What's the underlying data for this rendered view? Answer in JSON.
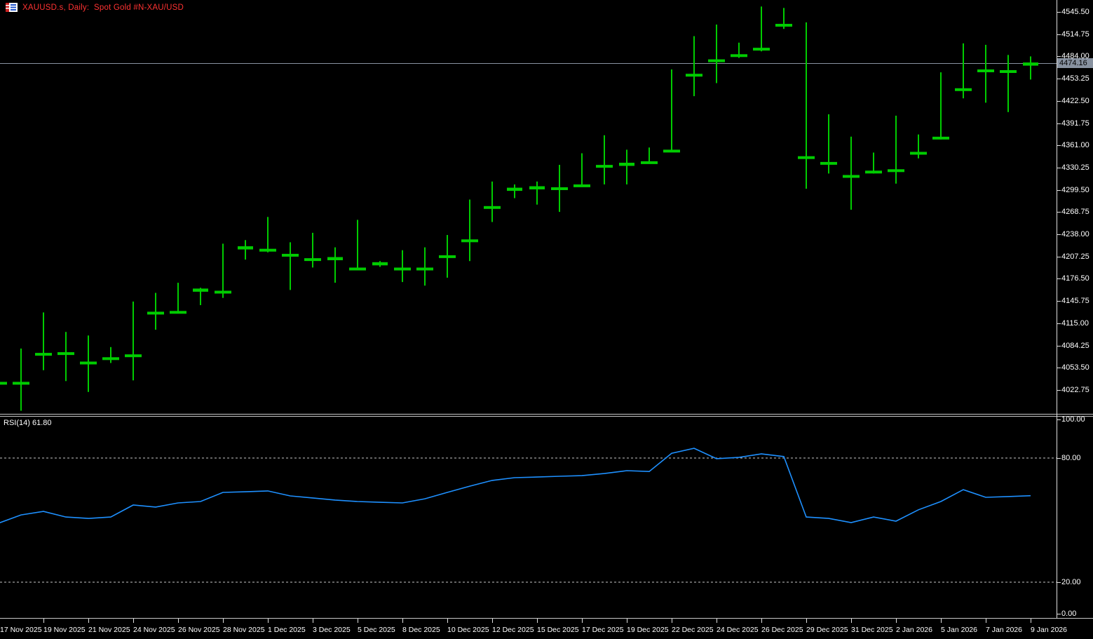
{
  "title_bar": {
    "title": "XAUUSD.s, Daily:  Spot Gold #N-XAU/USD"
  },
  "colors": {
    "background": "#000000",
    "candle_outline": "#00cc00",
    "bull_body": "#000000",
    "bear_body": "#ffffff",
    "doji_body": "#00cc00",
    "title_text": "#ff3232",
    "axis_text": "#ffffff",
    "axis_line": "#e0e0e0",
    "separator": "#c8c8c8",
    "rsi_line": "#1e90ff",
    "level_dash": "#c8c8c8",
    "price_line": "#8892a0",
    "price_tag_bg": "#8892a0",
    "price_tag_text": "#000000"
  },
  "chart_data": {
    "type": "candlestick",
    "instrument": "XAUUSD.s",
    "timeframe": "Daily",
    "description": "Spot Gold #N-XAU/USD",
    "current_price": "4474.16",
    "price_axis_labels": [
      "4545.50",
      "4514.75",
      "4484.00",
      "4453.25",
      "4422.50",
      "4391.75",
      "4361.00",
      "4330.25",
      "4299.50",
      "4268.75",
      "4238.00",
      "4207.25",
      "4176.50",
      "4145.75",
      "4115.00",
      "4084.25",
      "4053.50",
      "4022.75"
    ],
    "time_axis_labels": [
      {
        "t": "17 Nov 2025",
        "i": 0
      },
      {
        "t": "19 Nov 2025",
        "i": 2
      },
      {
        "t": "21 Nov 2025",
        "i": 4
      },
      {
        "t": "24 Nov 2025",
        "i": 6
      },
      {
        "t": "26 Nov 2025",
        "i": 8
      },
      {
        "t": "28 Nov 2025",
        "i": 10
      },
      {
        "t": "1 Dec 2025",
        "i": 12
      },
      {
        "t": "3 Dec 2025",
        "i": 14
      },
      {
        "t": "5 Dec 2025",
        "i": 16
      },
      {
        "t": "8 Dec 2025",
        "i": 18
      },
      {
        "t": "10 Dec 2025",
        "i": 20
      },
      {
        "t": "12 Dec 2025",
        "i": 22
      },
      {
        "t": "15 Dec 2025",
        "i": 24
      },
      {
        "t": "17 Dec 2025",
        "i": 26
      },
      {
        "t": "19 Dec 2025",
        "i": 28
      },
      {
        "t": "22 Dec 2025",
        "i": 30
      },
      {
        "t": "24 Dec 2025",
        "i": 32
      },
      {
        "t": "26 Dec 2025",
        "i": 34
      },
      {
        "t": "29 Dec 2025",
        "i": 36
      },
      {
        "t": "31 Dec 2025",
        "i": 38
      },
      {
        "t": "2 Jan 2026",
        "i": 40
      },
      {
        "t": "5 Jan 2026",
        "i": 42
      },
      {
        "t": "7 Jan 2026",
        "i": 44
      },
      {
        "t": "9 Jan 2026",
        "i": 46
      }
    ],
    "candles_format": [
      "open",
      "high",
      "low",
      "close",
      "body"
    ],
    "candles": [
      [
        4093,
        4096,
        4030,
        4033,
        "bear"
      ],
      [
        4033,
        4080,
        3994,
        4072,
        "bull"
      ],
      [
        4073,
        4130,
        4050,
        4100,
        "bull"
      ],
      [
        4100,
        4103,
        4035,
        4074,
        "bear"
      ],
      [
        4074,
        4098,
        4020,
        4061,
        "bear"
      ],
      [
        4067,
        4082,
        4060,
        4071,
        "bull"
      ],
      [
        4071,
        4145,
        4036,
        4142,
        "bull"
      ],
      [
        4140,
        4157,
        4106,
        4130,
        "bear"
      ],
      [
        4131,
        4171,
        4129,
        4162,
        "bull"
      ],
      [
        4160,
        4164,
        4140,
        4162,
        "doji"
      ],
      [
        4159,
        4225,
        4150,
        4218,
        "bull"
      ],
      [
        4220,
        4230,
        4203,
        4219,
        "doji"
      ],
      [
        4217,
        4262,
        4213,
        4225,
        "bull"
      ],
      [
        4225,
        4227,
        4161,
        4210,
        "bear"
      ],
      [
        4210,
        4240,
        4192,
        4204,
        "bear"
      ],
      [
        4205,
        4220,
        4171,
        4204,
        "doji"
      ],
      [
        4205,
        4258,
        4189,
        4191,
        "bear"
      ],
      [
        4196,
        4201,
        4193,
        4199,
        "doji"
      ],
      [
        4199,
        4216,
        4172,
        4191,
        "bear"
      ],
      [
        4191,
        4220,
        4167,
        4209,
        "bull"
      ],
      [
        4208,
        4237,
        4178,
        4230,
        "bull"
      ],
      [
        4230,
        4286,
        4201,
        4275,
        "bull"
      ],
      [
        4276,
        4311,
        4255,
        4300,
        "bull"
      ],
      [
        4300,
        4307,
        4288,
        4301,
        "doji"
      ],
      [
        4301,
        4311,
        4279,
        4304,
        "doji"
      ],
      [
        4302,
        4334,
        4269,
        4306,
        "bull"
      ],
      [
        4306,
        4350,
        4304,
        4338,
        "bull"
      ],
      [
        4339,
        4375,
        4307,
        4333,
        "bear"
      ],
      [
        4334,
        4355,
        4307,
        4336,
        "doji"
      ],
      [
        4338,
        4358,
        4336,
        4355,
        "bull"
      ],
      [
        4354,
        4466,
        4353,
        4460,
        "bull"
      ],
      [
        4459,
        4512,
        4429,
        4504,
        "bull"
      ],
      [
        4504,
        4528,
        4447,
        4479,
        "bear"
      ],
      [
        4486,
        4503,
        4482,
        4496,
        "bull"
      ],
      [
        4495,
        4553,
        4491,
        4534,
        "bull"
      ],
      [
        4538,
        4551,
        4522,
        4528,
        "bear"
      ],
      [
        4528,
        4531,
        4301,
        4345,
        "bear"
      ],
      [
        4345,
        4404,
        4322,
        4337,
        "bear"
      ],
      [
        4339,
        4373,
        4272,
        4319,
        "bear"
      ],
      [
        4325,
        4351,
        4322,
        4348,
        "bull"
      ],
      [
        4349,
        4402,
        4308,
        4327,
        "bear"
      ],
      [
        4351,
        4376,
        4343,
        4372,
        "bull"
      ],
      [
        4372,
        4462,
        4369,
        4441,
        "bull"
      ],
      [
        4439,
        4502,
        4426,
        4494,
        "bull"
      ],
      [
        4495,
        4500,
        4420,
        4465,
        "bear"
      ],
      [
        4464,
        4486,
        4407,
        4477,
        "bull"
      ],
      [
        4473,
        4484,
        4452,
        4474.16,
        "doji"
      ]
    ],
    "indicator": {
      "name": "RSI",
      "period": 14,
      "label": "RSI(14) 61.80",
      "current": 61.8,
      "level_labels": [
        "100.00",
        "80.00",
        "20.00",
        "0.00"
      ],
      "level_values": [
        100,
        80,
        20,
        0
      ],
      "dashed_levels": [
        80,
        20
      ],
      "values": [
        48.5,
        52.5,
        54.2,
        51.5,
        50.8,
        51.5,
        57.3,
        56.3,
        58.3,
        59.0,
        63.4,
        63.7,
        64.1,
        61.7,
        60.7,
        59.7,
        59.0,
        58.6,
        58.3,
        60.3,
        63.4,
        66.4,
        69.2,
        70.5,
        70.8,
        71.2,
        71.5,
        72.5,
        73.9,
        73.5,
        82.3,
        84.7,
        79.7,
        80.3,
        82.0,
        80.7,
        51.5,
        50.8,
        48.8,
        51.5,
        49.5,
        55.0,
        59.0,
        64.7,
        61.0,
        61.4,
        61.8
      ]
    }
  }
}
